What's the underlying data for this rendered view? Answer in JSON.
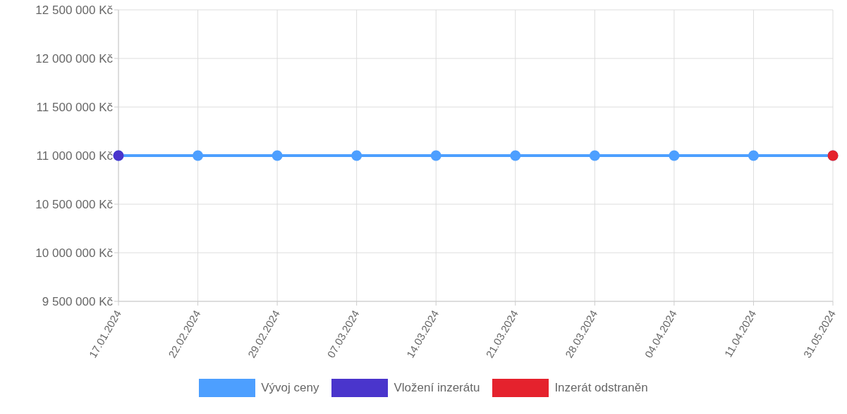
{
  "chart_data": {
    "type": "line",
    "categories": [
      "17.01.2024",
      "22.02.2024",
      "29.02.2024",
      "07.03.2024",
      "14.03.2024",
      "21.03.2024",
      "28.03.2024",
      "04.04.2024",
      "11.04.2024",
      "31.05.2024"
    ],
    "series": [
      {
        "name": "Vývoj ceny",
        "color": "#4d9fff",
        "values": [
          11000000,
          11000000,
          11000000,
          11000000,
          11000000,
          11000000,
          11000000,
          11000000,
          11000000,
          11000000
        ]
      },
      {
        "name": "Vložení inzerátu",
        "type": "scatter",
        "color": "#4a35cc",
        "values": [
          11000000,
          null,
          null,
          null,
          null,
          null,
          null,
          null,
          null,
          null
        ]
      },
      {
        "name": "Inzerát odstraněn",
        "type": "scatter",
        "color": "#e5222d",
        "values": [
          null,
          null,
          null,
          null,
          null,
          null,
          null,
          null,
          null,
          11000000
        ]
      }
    ],
    "ylim": [
      9500000,
      12500000
    ],
    "yticks": [
      {
        "value": 9500000,
        "label": "9 500 000 Kč"
      },
      {
        "value": 10000000,
        "label": "10 000 000 Kč"
      },
      {
        "value": 10500000,
        "label": "10 500 000 Kč"
      },
      {
        "value": 11000000,
        "label": "11 000 000 Kč"
      },
      {
        "value": 11500000,
        "label": "11 500 000 Kč"
      },
      {
        "value": 12000000,
        "label": "12 000 000 Kč"
      },
      {
        "value": 12500000,
        "label": "12 500 000 Kč"
      }
    ],
    "grid": true,
    "legend": "bottom",
    "marker": "circle"
  }
}
